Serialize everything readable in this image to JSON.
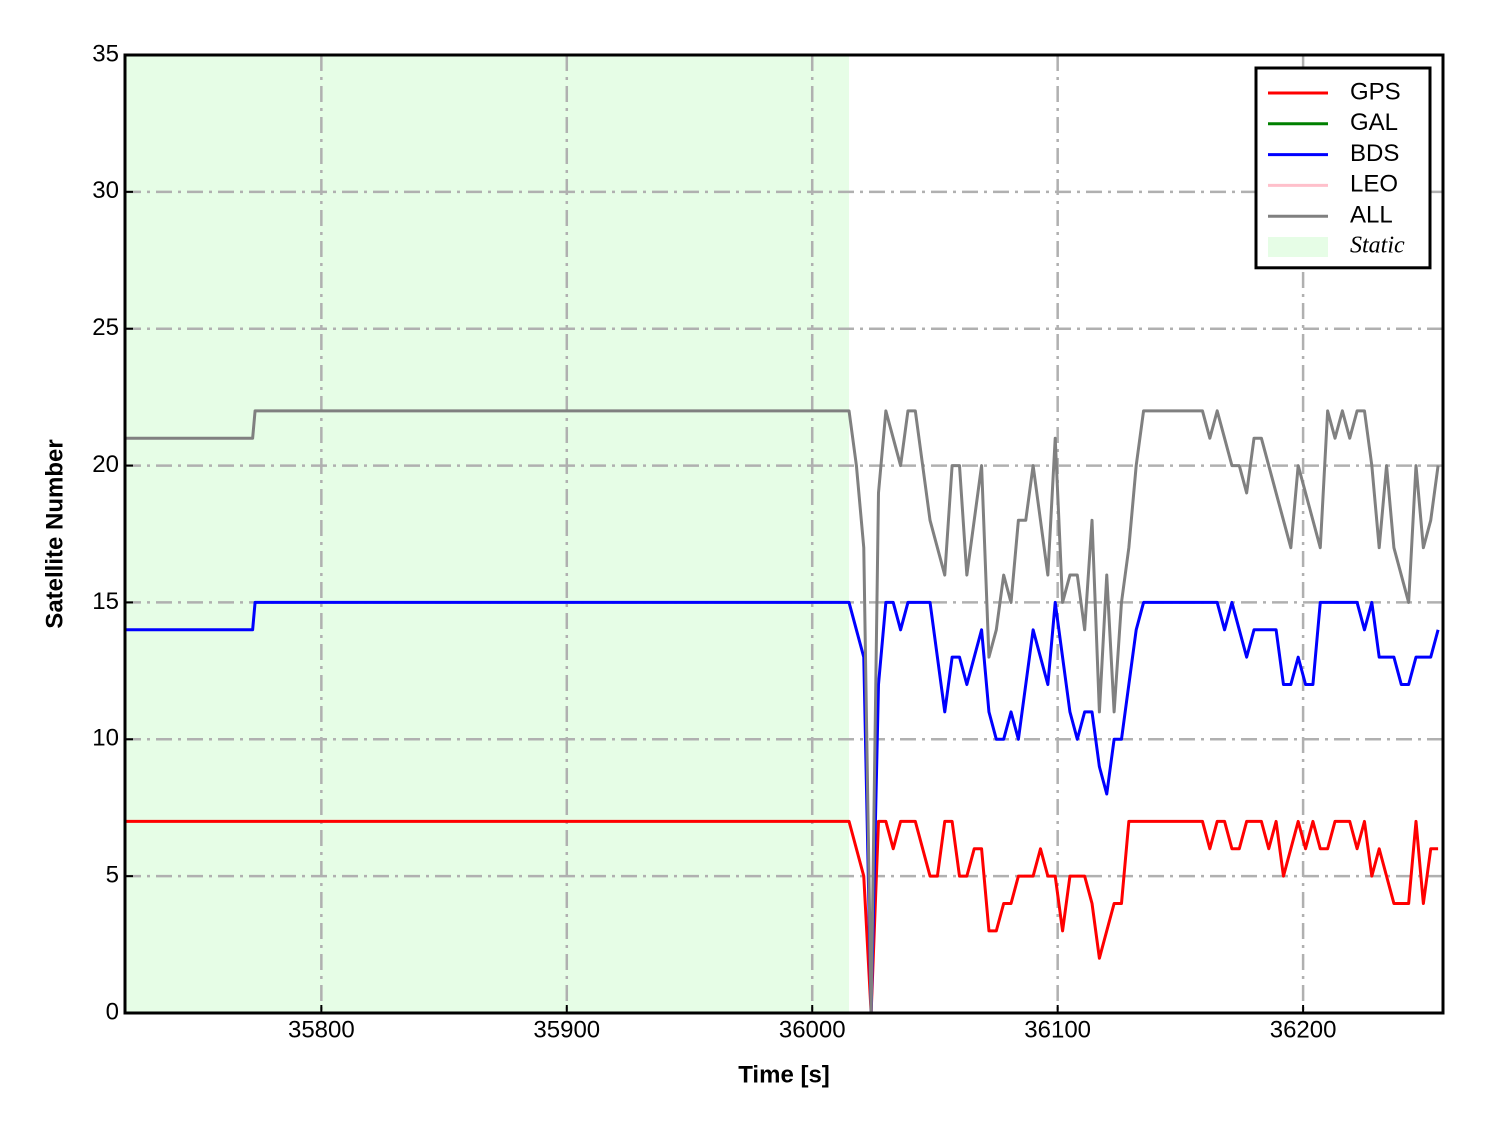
{
  "chart_data": {
    "type": "line",
    "xlabel": "Time [s]",
    "ylabel": "Satellite Number",
    "x": [
      35720,
      35772,
      35773,
      36015,
      36018,
      36021,
      36024,
      36027,
      36030,
      36033,
      36036,
      36039,
      36042,
      36045,
      36048,
      36051,
      36054,
      36057,
      36060,
      36063,
      36066,
      36069,
      36072,
      36075,
      36078,
      36081,
      36084,
      36087,
      36090,
      36093,
      36096,
      36099,
      36102,
      36105,
      36108,
      36111,
      36114,
      36117,
      36120,
      36123,
      36126,
      36129,
      36132,
      36135,
      36138,
      36141,
      36144,
      36147,
      36150,
      36153,
      36156,
      36159,
      36162,
      36165,
      36168,
      36171,
      36174,
      36177,
      36180,
      36183,
      36186,
      36189,
      36192,
      36195,
      36198,
      36201,
      36204,
      36207,
      36210,
      36213,
      36216,
      36219,
      36222,
      36225,
      36228,
      36231,
      36234,
      36237,
      36240,
      36243,
      36246,
      36249,
      36252,
      36255
    ],
    "series": [
      {
        "name": "GPS",
        "color": "#ff0000",
        "values": [
          7,
          7,
          7,
          7,
          6,
          5,
          0,
          7,
          7,
          6,
          7,
          7,
          7,
          6,
          5,
          5,
          7,
          7,
          5,
          5,
          6,
          6,
          3,
          3,
          4,
          4,
          5,
          5,
          5,
          6,
          5,
          5,
          3,
          5,
          5,
          5,
          4,
          2,
          3,
          4,
          4,
          7,
          7,
          7,
          7,
          7,
          7,
          7,
          7,
          7,
          7,
          7,
          6,
          7,
          7,
          6,
          6,
          7,
          7,
          7,
          6,
          7,
          5,
          6,
          7,
          6,
          7,
          6,
          6,
          7,
          7,
          7,
          6,
          7,
          5,
          6,
          5,
          4,
          4,
          4,
          7,
          4,
          6,
          6
        ]
      },
      {
        "name": "GAL",
        "color": "#008000",
        "values": [
          null,
          null,
          null,
          null,
          null,
          null,
          null,
          null,
          null,
          null,
          null,
          null,
          null,
          null,
          null,
          null,
          null,
          null,
          null,
          null,
          null,
          null,
          null,
          null,
          null,
          null,
          null,
          null,
          null,
          null,
          null,
          null,
          null,
          null,
          null,
          null,
          null,
          null,
          null,
          null,
          null,
          null,
          null,
          null,
          null,
          null,
          null,
          null,
          null,
          null,
          null,
          null,
          null,
          null,
          null,
          null,
          null,
          null,
          null,
          null,
          null,
          null,
          null,
          null,
          null,
          null,
          null,
          null,
          null,
          null,
          null,
          null,
          null,
          null,
          null,
          null,
          null,
          null,
          null,
          null,
          null,
          null,
          null,
          null
        ]
      },
      {
        "name": "BDS",
        "color": "#0000ff",
        "values": [
          14,
          14,
          15,
          15,
          14,
          13,
          0,
          12,
          15,
          15,
          14,
          15,
          15,
          15,
          15,
          13,
          11,
          13,
          13,
          12,
          13,
          14,
          11,
          10,
          10,
          11,
          10,
          12,
          14,
          13,
          12,
          15,
          13,
          11,
          10,
          11,
          11,
          9,
          8,
          10,
          10,
          12,
          14,
          15,
          15,
          15,
          15,
          15,
          15,
          15,
          15,
          15,
          15,
          15,
          14,
          15,
          14,
          13,
          14,
          14,
          14,
          14,
          12,
          12,
          13,
          12,
          12,
          15,
          15,
          15,
          15,
          15,
          15,
          14,
          15,
          13,
          13,
          13,
          12,
          12,
          13,
          13,
          13,
          14
        ]
      },
      {
        "name": "LEO",
        "color": "#ffc0cb",
        "values": [
          null,
          null,
          null,
          null,
          null,
          null,
          null,
          null,
          null,
          null,
          null,
          null,
          null,
          null,
          null,
          null,
          null,
          null,
          null,
          null,
          null,
          null,
          null,
          null,
          null,
          null,
          null,
          null,
          null,
          null,
          null,
          null,
          null,
          null,
          null,
          null,
          null,
          null,
          null,
          null,
          null,
          null,
          null,
          null,
          null,
          null,
          null,
          null,
          null,
          null,
          null,
          null,
          null,
          null,
          null,
          null,
          null,
          null,
          null,
          null,
          null,
          null,
          null,
          null,
          null,
          null,
          null,
          null,
          null,
          null,
          null,
          null,
          null,
          null,
          null,
          null,
          null,
          null,
          null,
          null,
          null,
          null,
          null,
          null
        ]
      },
      {
        "name": "ALL",
        "color": "#808080",
        "values": [
          21,
          21,
          22,
          22,
          20,
          17,
          0,
          19,
          22,
          21,
          20,
          22,
          22,
          20,
          18,
          17,
          16,
          20,
          20,
          16,
          18,
          20,
          13,
          14,
          16,
          15,
          18,
          18,
          20,
          18,
          16,
          21,
          15,
          16,
          16,
          14,
          18,
          11,
          16,
          11,
          15,
          17,
          20,
          22,
          22,
          22,
          22,
          22,
          22,
          22,
          22,
          22,
          21,
          22,
          21,
          20,
          20,
          19,
          21,
          21,
          20,
          19,
          18,
          17,
          20,
          19,
          18,
          17,
          22,
          21,
          22,
          21,
          22,
          22,
          20,
          17,
          20,
          17,
          16,
          15,
          20,
          17,
          18,
          20
        ]
      }
    ],
    "span": {
      "label": "Static",
      "x": [
        35720,
        36015
      ],
      "color": "#e6fde6"
    },
    "xlim": [
      35720,
      36257
    ],
    "ylim": [
      0,
      35
    ],
    "xticks": [
      35800,
      35900,
      36000,
      36100,
      36200
    ],
    "yticks": [
      0,
      5,
      10,
      15,
      20,
      25,
      30,
      35
    ],
    "grid": true,
    "legend": "upper right"
  }
}
